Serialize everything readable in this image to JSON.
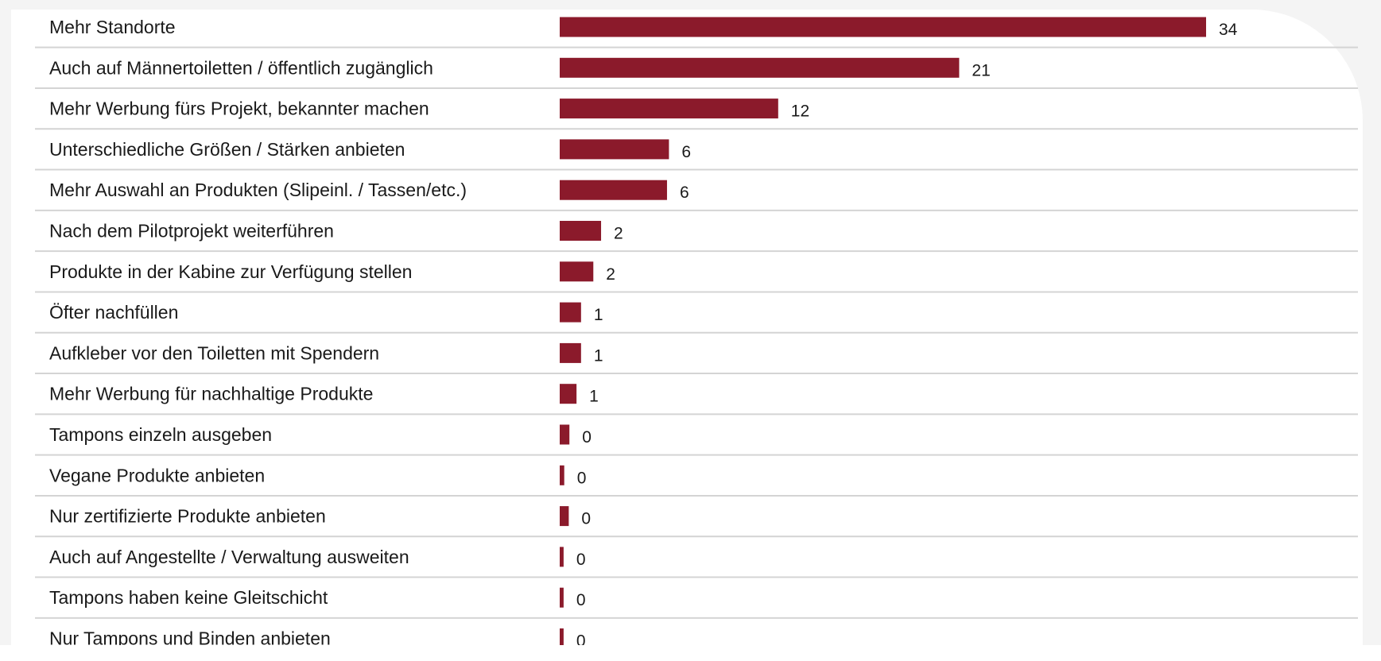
{
  "chart_data": {
    "type": "bar",
    "orientation": "horizontal",
    "categories": [
      "Mehr Standorte",
      "Auch auf Männertoiletten / öffentlich zugänglich",
      "Mehr Werbung fürs Projekt, bekannter machen",
      "Unterschiedliche Größen / Stärken anbieten",
      "Mehr Auswahl an Produkten (Slipeinl. / Tassen/etc.)",
      "Nach dem Pilotprojekt weiterführen",
      "Produkte in der Kabine zur Verfügung stellen",
      "Öfter nachfüllen",
      "Aufkleber vor den Toiletten mit Spendern",
      "Mehr Werbung für nachhaltige Produkte",
      "Tampons einzeln ausgeben",
      "Vegane Produkte anbieten",
      "Nur zertifizierte Produkte anbieten",
      "Auch auf Angestellte / Verwaltung ausweiten",
      "Tampons haben keine Gleitschicht",
      "Nur Tampons und Binden anbieten"
    ],
    "values": [
      34,
      21,
      12,
      6,
      6,
      2,
      2,
      1,
      1,
      1,
      0,
      0,
      0,
      0,
      0,
      0
    ],
    "bar_fraction_of_max": [
      1.0,
      0.618,
      0.338,
      0.169,
      0.166,
      0.064,
      0.052,
      0.033,
      0.033,
      0.026,
      0.015,
      0.007,
      0.014,
      0.006,
      0.006,
      0.006
    ],
    "value_labels": [
      "34",
      "21",
      "12",
      "6",
      "6",
      "2",
      "2",
      "1",
      "1",
      "1",
      "0",
      "0",
      "0",
      "0",
      "0",
      "0"
    ],
    "bar_color": "#8b1a2b",
    "separator_color": "#d4d4d4",
    "grid": false,
    "legend": "none"
  }
}
